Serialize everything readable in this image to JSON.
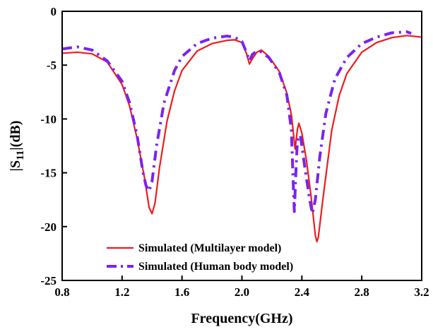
{
  "chart_data": {
    "type": "line",
    "title": "",
    "xlabel": "Frequency(GHz)",
    "ylabel_main": "|S",
    "ylabel_sub": "11",
    "ylabel_tail": "|(dB)",
    "xlim": [
      0.8,
      3.2
    ],
    "ylim": [
      -25,
      0
    ],
    "xticks": [
      0.8,
      1.2,
      1.6,
      2.0,
      2.4,
      2.8,
      3.2
    ],
    "xtick_labels": [
      "0.8",
      "1.2",
      "1.6",
      "2.0",
      "2.4",
      "2.8",
      "3.2"
    ],
    "yticks": [
      0,
      -5,
      -10,
      -15,
      -20,
      -25
    ],
    "ytick_labels": [
      "0",
      "-5",
      "-10",
      "-15",
      "-20",
      "-25"
    ],
    "grid": false,
    "legend_position": "bottom-left",
    "series": [
      {
        "name": "Simulated (Multilayer model)",
        "color": "#ee1c1c",
        "style": "solid",
        "points": [
          [
            0.8,
            -3.9
          ],
          [
            0.9,
            -3.8
          ],
          [
            1.0,
            -3.95
          ],
          [
            1.1,
            -4.7
          ],
          [
            1.2,
            -6.8
          ],
          [
            1.25,
            -8.8
          ],
          [
            1.3,
            -11.8
          ],
          [
            1.35,
            -15.5
          ],
          [
            1.38,
            -18.2
          ],
          [
            1.4,
            -18.8
          ],
          [
            1.42,
            -17.8
          ],
          [
            1.45,
            -14.5
          ],
          [
            1.5,
            -10.2
          ],
          [
            1.55,
            -7.4
          ],
          [
            1.6,
            -5.5
          ],
          [
            1.7,
            -3.7
          ],
          [
            1.8,
            -3.0
          ],
          [
            1.9,
            -2.7
          ],
          [
            1.95,
            -2.65
          ],
          [
            2.0,
            -2.9
          ],
          [
            2.03,
            -3.9
          ],
          [
            2.05,
            -4.9
          ],
          [
            2.07,
            -4.4
          ],
          [
            2.1,
            -3.8
          ],
          [
            2.13,
            -3.6
          ],
          [
            2.18,
            -4.2
          ],
          [
            2.25,
            -5.6
          ],
          [
            2.3,
            -7.6
          ],
          [
            2.33,
            -9.6
          ],
          [
            2.345,
            -11.5
          ],
          [
            2.355,
            -12.8
          ],
          [
            2.37,
            -11.0
          ],
          [
            2.38,
            -10.4
          ],
          [
            2.4,
            -11.3
          ],
          [
            2.43,
            -13.8
          ],
          [
            2.46,
            -17.0
          ],
          [
            2.49,
            -20.8
          ],
          [
            2.5,
            -21.4
          ],
          [
            2.51,
            -21.0
          ],
          [
            2.54,
            -17.5
          ],
          [
            2.6,
            -11.0
          ],
          [
            2.65,
            -7.8
          ],
          [
            2.7,
            -5.8
          ],
          [
            2.8,
            -3.8
          ],
          [
            2.9,
            -2.9
          ],
          [
            3.0,
            -2.45
          ],
          [
            3.1,
            -2.25
          ],
          [
            3.2,
            -2.4
          ]
        ]
      },
      {
        "name": "Simulated (Human body model)",
        "color": "#7b22f0",
        "style": "dashdot",
        "points": [
          [
            0.8,
            -3.5
          ],
          [
            0.9,
            -3.3
          ],
          [
            1.0,
            -3.6
          ],
          [
            1.1,
            -4.6
          ],
          [
            1.2,
            -6.5
          ],
          [
            1.25,
            -8.5
          ],
          [
            1.3,
            -11.5
          ],
          [
            1.34,
            -15.0
          ],
          [
            1.36,
            -16.2
          ],
          [
            1.38,
            -16.7
          ],
          [
            1.4,
            -15.8
          ],
          [
            1.43,
            -12.5
          ],
          [
            1.48,
            -8.5
          ],
          [
            1.55,
            -5.5
          ],
          [
            1.6,
            -4.2
          ],
          [
            1.7,
            -3.0
          ],
          [
            1.8,
            -2.5
          ],
          [
            1.9,
            -2.3
          ],
          [
            1.95,
            -2.4
          ],
          [
            2.0,
            -2.8
          ],
          [
            2.03,
            -3.8
          ],
          [
            2.05,
            -4.6
          ],
          [
            2.07,
            -4.0
          ],
          [
            2.1,
            -3.7
          ],
          [
            2.12,
            -3.7
          ],
          [
            2.18,
            -4.3
          ],
          [
            2.25,
            -5.7
          ],
          [
            2.3,
            -7.8
          ],
          [
            2.33,
            -11.0
          ],
          [
            2.345,
            -17.0
          ],
          [
            2.35,
            -18.6
          ],
          [
            2.36,
            -15.0
          ],
          [
            2.37,
            -12.0
          ],
          [
            2.39,
            -11.5
          ],
          [
            2.42,
            -14.5
          ],
          [
            2.45,
            -17.3
          ],
          [
            2.47,
            -18.8
          ],
          [
            2.49,
            -17.5
          ],
          [
            2.52,
            -13.5
          ],
          [
            2.56,
            -9.5
          ],
          [
            2.62,
            -6.3
          ],
          [
            2.7,
            -4.3
          ],
          [
            2.8,
            -3.0
          ],
          [
            2.9,
            -2.4
          ],
          [
            3.0,
            -2.0
          ],
          [
            3.1,
            -1.9
          ],
          [
            3.13,
            -2.05
          ]
        ]
      }
    ]
  }
}
